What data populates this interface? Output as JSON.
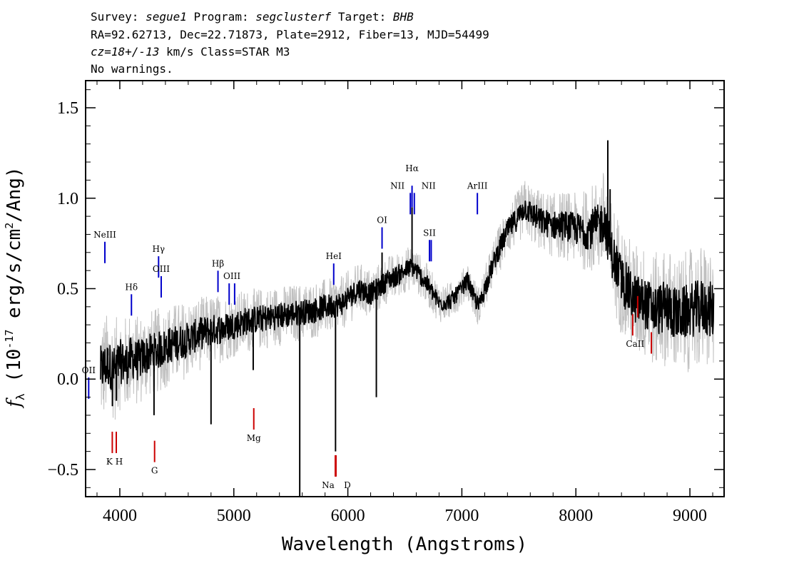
{
  "header": {
    "line1": {
      "survey_label": "Survey:",
      "survey": "segue1",
      "program_label": "Program:",
      "program": "segclusterf",
      "target_label": "Target:",
      "target": "BHB"
    },
    "line2": "RA=92.62713, Dec=22.71873, Plate=2912, Fiber=13, MJD=54499",
    "line3": {
      "cz": "cz=18+/-13",
      "rest": " km/s Class=STAR M3"
    },
    "line4": "No warnings."
  },
  "chart_data": {
    "type": "line",
    "xlabel": "Wavelength (Angstroms)",
    "ylabel": "f_λ (10^-17 erg/s/cm²/Ang)",
    "xlim": [
      3700,
      9300
    ],
    "ylim": [
      -0.65,
      1.65
    ],
    "x_ticks": [
      {
        "value": 4000,
        "label": "4000"
      },
      {
        "value": 5000,
        "label": "5000"
      },
      {
        "value": 6000,
        "label": "6000"
      },
      {
        "value": 7000,
        "label": "7000"
      },
      {
        "value": 8000,
        "label": "8000"
      },
      {
        "value": 9000,
        "label": "9000"
      }
    ],
    "y_ticks": [
      {
        "value": -0.5,
        "label": "−0.5"
      },
      {
        "value": 0.0,
        "label": "0.0"
      },
      {
        "value": 0.5,
        "label": "0.5"
      },
      {
        "value": 1.0,
        "label": "1.0"
      },
      {
        "value": 1.5,
        "label": "1.5"
      }
    ],
    "series": [
      {
        "role": "flux",
        "color": "#000000",
        "points": [
          [
            3830,
            0.05
          ],
          [
            3900,
            0.08
          ],
          [
            3960,
            0.05
          ],
          [
            4000,
            0.1
          ],
          [
            4050,
            0.08
          ],
          [
            4100,
            0.12
          ],
          [
            4150,
            0.1
          ],
          [
            4200,
            0.12
          ],
          [
            4250,
            0.14
          ],
          [
            4300,
            0.15
          ],
          [
            4350,
            0.16
          ],
          [
            4400,
            0.18
          ],
          [
            4500,
            0.2
          ],
          [
            4600,
            0.22
          ],
          [
            4700,
            0.25
          ],
          [
            4800,
            0.27
          ],
          [
            4900,
            0.28
          ],
          [
            5000,
            0.3
          ],
          [
            5100,
            0.32
          ],
          [
            5200,
            0.33
          ],
          [
            5300,
            0.34
          ],
          [
            5400,
            0.35
          ],
          [
            5500,
            0.36
          ],
          [
            5600,
            0.37
          ],
          [
            5700,
            0.38
          ],
          [
            5800,
            0.4
          ],
          [
            5900,
            0.41
          ],
          [
            5950,
            0.42
          ],
          [
            6000,
            0.45
          ],
          [
            6100,
            0.5
          ],
          [
            6200,
            0.47
          ],
          [
            6300,
            0.52
          ],
          [
            6350,
            0.55
          ],
          [
            6400,
            0.56
          ],
          [
            6500,
            0.6
          ],
          [
            6560,
            0.62
          ],
          [
            6600,
            0.6
          ],
          [
            6700,
            0.52
          ],
          [
            6800,
            0.42
          ],
          [
            6900,
            0.43
          ],
          [
            7000,
            0.5
          ],
          [
            7050,
            0.55
          ],
          [
            7100,
            0.46
          ],
          [
            7150,
            0.4
          ],
          [
            7200,
            0.5
          ],
          [
            7300,
            0.68
          ],
          [
            7400,
            0.82
          ],
          [
            7500,
            0.9
          ],
          [
            7550,
            0.95
          ],
          [
            7600,
            0.92
          ],
          [
            7700,
            0.87
          ],
          [
            7800,
            0.85
          ],
          [
            7900,
            0.85
          ],
          [
            8000,
            0.83
          ],
          [
            8100,
            0.82
          ],
          [
            8200,
            0.85
          ],
          [
            8250,
            0.88
          ],
          [
            8300,
            0.72
          ],
          [
            8400,
            0.55
          ],
          [
            8500,
            0.45
          ],
          [
            8600,
            0.42
          ],
          [
            8700,
            0.38
          ],
          [
            8800,
            0.4
          ],
          [
            8900,
            0.35
          ],
          [
            9000,
            0.38
          ],
          [
            9100,
            0.4
          ],
          [
            9200,
            0.38
          ]
        ],
        "features": [
          [
            3935,
            -0.15
          ],
          [
            3970,
            -0.12
          ],
          [
            4300,
            -0.2
          ],
          [
            4800,
            -0.25
          ],
          [
            5170,
            0.05
          ],
          [
            5578,
            -0.65
          ],
          [
            5892,
            -0.4
          ],
          [
            6250,
            -0.1
          ],
          [
            6563,
            0.95
          ],
          [
            6300,
            0.7
          ],
          [
            8280,
            1.32
          ],
          [
            8300,
            1.05
          ],
          [
            7070,
            0.52
          ]
        ]
      },
      {
        "role": "error envelope",
        "color": "#c0c0c0",
        "noise_amplitude": [
          [
            3830,
            0.3
          ],
          [
            4200,
            0.25
          ],
          [
            5000,
            0.18
          ],
          [
            6000,
            0.15
          ],
          [
            7000,
            0.1
          ],
          [
            8000,
            0.2
          ],
          [
            8300,
            0.3
          ],
          [
            9200,
            0.35
          ]
        ]
      }
    ],
    "line_markers": [
      {
        "label": "OII",
        "wavelength": 3727,
        "color": "#0000cc",
        "side": "top",
        "y": -0.05
      },
      {
        "label": "NeIII",
        "wavelength": 3869,
        "color": "#0000cc",
        "side": "top",
        "y": 0.7
      },
      {
        "label": "Hδ",
        "wavelength": 4102,
        "color": "#0000cc",
        "side": "top",
        "y": 0.41
      },
      {
        "label": "Hγ",
        "wavelength": 4340,
        "color": "#0000cc",
        "side": "top",
        "y": 0.62
      },
      {
        "label": "OIII",
        "wavelength": 4363,
        "color": "#0000cc",
        "side": "top",
        "y": 0.51
      },
      {
        "label": "Hβ",
        "wavelength": 4861,
        "color": "#0000cc",
        "side": "top",
        "y": 0.54
      },
      {
        "label": "OIII",
        "wavelength": 4959,
        "color": "#0000cc",
        "side": "top",
        "y": 0.47
      },
      {
        "label": "OIII",
        "wavelength": 5007,
        "color": "#0000cc",
        "side": "top",
        "y": 0.47
      },
      {
        "label": "HeI",
        "wavelength": 5876,
        "color": "#0000cc",
        "side": "top",
        "y": 0.58
      },
      {
        "label": "OI",
        "wavelength": 6300,
        "color": "#0000cc",
        "side": "top",
        "y": 0.78
      },
      {
        "label": "NII",
        "wavelength": 6548,
        "color": "#0000cc",
        "side": "top",
        "y": 0.97
      },
      {
        "label": "Hα",
        "wavelength": 6563,
        "color": "#0000cc",
        "side": "top",
        "y": 1.01
      },
      {
        "label": "NII",
        "wavelength": 6583,
        "color": "#0000cc",
        "side": "top",
        "y": 0.97
      },
      {
        "label": "SII",
        "wavelength": 6716,
        "color": "#0000cc",
        "side": "top",
        "y": 0.71
      },
      {
        "label": "SII",
        "wavelength": 6731,
        "color": "#0000cc",
        "side": "top",
        "y": 0.71
      },
      {
        "label": "ArIII",
        "wavelength": 7136,
        "color": "#0000cc",
        "side": "top",
        "y": 0.97
      },
      {
        "label": "K",
        "wavelength": 3934,
        "color": "#cc0000",
        "side": "bottom",
        "y": -0.35
      },
      {
        "label": "H",
        "wavelength": 3969,
        "color": "#cc0000",
        "side": "bottom",
        "y": -0.35
      },
      {
        "label": "G",
        "wavelength": 4305,
        "color": "#cc0000",
        "side": "bottom",
        "y": -0.4
      },
      {
        "label": "Mg",
        "wavelength": 5175,
        "color": "#cc0000",
        "side": "bottom",
        "y": -0.22
      },
      {
        "label": "Na",
        "wavelength": 5890,
        "color": "#cc0000",
        "side": "bottom",
        "y": -0.48
      },
      {
        "label": "D",
        "wavelength": 5896,
        "color": "#cc0000",
        "side": "bottom",
        "y": -0.48
      },
      {
        "label": "CaII",
        "wavelength": 8498,
        "color": "#cc0000",
        "side": "bottom",
        "y": 0.3
      },
      {
        "label": "CaII",
        "wavelength": 8542,
        "color": "#cc0000",
        "side": "bottom",
        "y": 0.4
      },
      {
        "label": "CaII",
        "wavelength": 8662,
        "color": "#cc0000",
        "side": "bottom",
        "y": 0.2
      }
    ],
    "grid": false,
    "legend": "none"
  }
}
